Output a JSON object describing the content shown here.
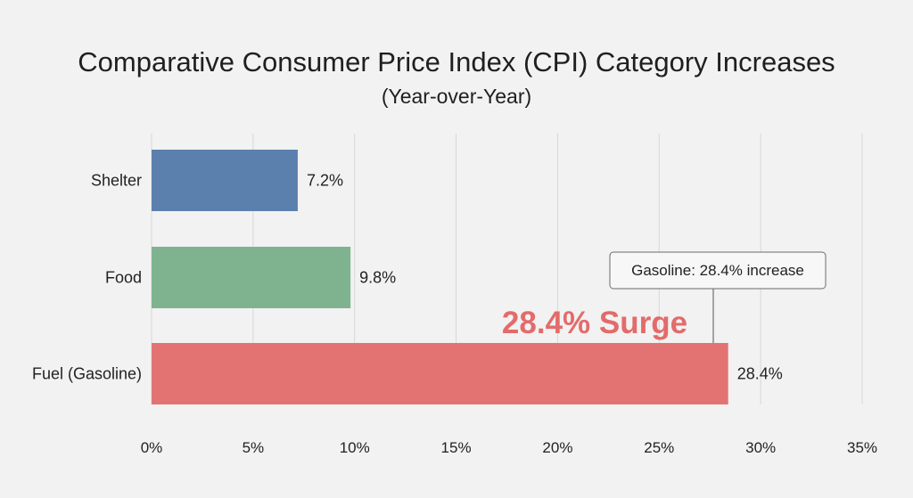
{
  "chart_data": {
    "type": "bar",
    "orientation": "horizontal",
    "title": "Comparative Consumer Price Index (CPI) Category Increases",
    "subtitle": "(Year-over-Year)",
    "categories": [
      "Shelter",
      "Food",
      "Fuel (Gasoline)"
    ],
    "values": [
      7.2,
      9.8,
      28.4
    ],
    "value_labels": [
      "7.2%",
      "9.8%",
      "28.4%"
    ],
    "colors": [
      "#5c80ad",
      "#7fb38f",
      "#e37373"
    ],
    "xlim": [
      0,
      35
    ],
    "xticks": [
      0,
      5,
      10,
      15,
      20,
      25,
      30,
      35
    ],
    "xtick_labels": [
      "0%",
      "5%",
      "10%",
      "15%",
      "20%",
      "25%",
      "30%",
      "35%"
    ],
    "grid": true,
    "annotations": {
      "callout": "Gasoline: 28.4% increase",
      "highlight": "28.4% Surge",
      "highlight_color": "#e36b6b"
    }
  }
}
